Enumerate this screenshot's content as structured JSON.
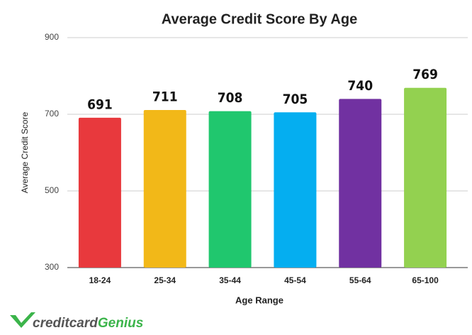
{
  "chart_data": {
    "type": "bar",
    "title": "Average Credit Score By Age",
    "x_label": "Age Range",
    "y_label": "Average Credit Score",
    "categories": [
      "18-24",
      "25-34",
      "35-44",
      "45-54",
      "55-64",
      "65-100"
    ],
    "values": [
      691,
      711,
      708,
      705,
      740,
      769
    ],
    "colors": [
      "#e8393d",
      "#f2b818",
      "#20c76e",
      "#05aef0",
      "#7131a1",
      "#93d150"
    ],
    "ylim": [
      300,
      900
    ],
    "yticks": [
      300,
      500,
      700,
      900
    ],
    "grid": true
  },
  "logo": {
    "text": "creditcard",
    "highlight": "Genius"
  }
}
